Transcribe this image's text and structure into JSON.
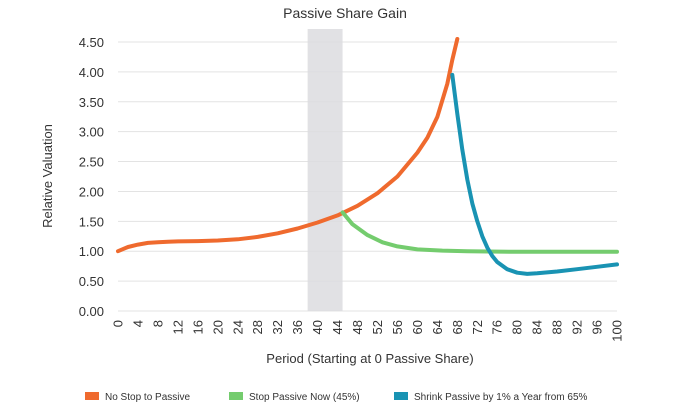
{
  "chart_data": {
    "type": "line",
    "title": "Passive Share Gain",
    "xlabel": "Period (Starting at 0 Passive Share)",
    "ylabel": "Relative Valuation",
    "xlim": [
      0,
      100
    ],
    "ylim": [
      0,
      4.5
    ],
    "x_ticks": [
      "0",
      "4",
      "8",
      "12",
      "16",
      "20",
      "24",
      "28",
      "32",
      "36",
      "40",
      "44",
      "48",
      "52",
      "56",
      "60",
      "64",
      "68",
      "72",
      "76",
      "80",
      "84",
      "88",
      "92",
      "96",
      "100"
    ],
    "y_ticks": [
      "0.00",
      "0.50",
      "1.00",
      "1.50",
      "2.00",
      "2.50",
      "3.00",
      "3.50",
      "4.00",
      "4.50"
    ],
    "grid": true,
    "legend_position": "bottom",
    "shaded_region": {
      "x_start": 38,
      "x_end": 45
    },
    "series": [
      {
        "name": "No Stop to Passive",
        "color": "#ef6a2e",
        "points": [
          [
            0,
            1.0
          ],
          [
            2,
            1.07
          ],
          [
            4,
            1.11
          ],
          [
            6,
            1.14
          ],
          [
            8,
            1.15
          ],
          [
            10,
            1.16
          ],
          [
            12,
            1.165
          ],
          [
            16,
            1.17
          ],
          [
            20,
            1.18
          ],
          [
            24,
            1.2
          ],
          [
            28,
            1.24
          ],
          [
            32,
            1.3
          ],
          [
            36,
            1.38
          ],
          [
            40,
            1.48
          ],
          [
            44,
            1.6
          ],
          [
            48,
            1.76
          ],
          [
            52,
            1.97
          ],
          [
            56,
            2.25
          ],
          [
            60,
            2.65
          ],
          [
            62,
            2.9
          ],
          [
            64,
            3.25
          ],
          [
            66,
            3.8
          ],
          [
            67,
            4.2
          ],
          [
            68,
            4.55
          ]
        ]
      },
      {
        "name": "Stop Passive Now (45%)",
        "color": "#74cc6e",
        "points": [
          [
            45,
            1.65
          ],
          [
            47,
            1.45
          ],
          [
            50,
            1.27
          ],
          [
            53,
            1.15
          ],
          [
            56,
            1.08
          ],
          [
            60,
            1.03
          ],
          [
            65,
            1.01
          ],
          [
            70,
            1.0
          ],
          [
            80,
            0.99
          ],
          [
            90,
            0.99
          ],
          [
            100,
            0.99
          ]
        ]
      },
      {
        "name": "Shrink Passive by 1% a Year from 65%",
        "color": "#1993b3",
        "points": [
          [
            67,
            3.95
          ],
          [
            68,
            3.3
          ],
          [
            69,
            2.7
          ],
          [
            70,
            2.2
          ],
          [
            71,
            1.8
          ],
          [
            72,
            1.5
          ],
          [
            73,
            1.25
          ],
          [
            74,
            1.06
          ],
          [
            75,
            0.92
          ],
          [
            76,
            0.82
          ],
          [
            78,
            0.7
          ],
          [
            80,
            0.64
          ],
          [
            82,
            0.62
          ],
          [
            84,
            0.63
          ],
          [
            88,
            0.66
          ],
          [
            92,
            0.7
          ],
          [
            96,
            0.74
          ],
          [
            100,
            0.78
          ]
        ]
      }
    ]
  }
}
